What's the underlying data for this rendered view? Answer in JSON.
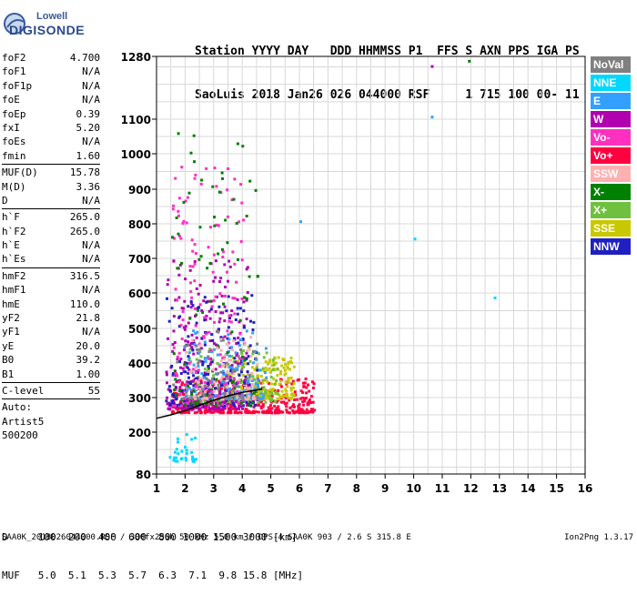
{
  "logo": {
    "line1": "Lowell",
    "line2": "DIGISONDE"
  },
  "header": {
    "line1": "Station YYYY DAY   DDD HHMMSS P1  FFS S AXN PPS IGA PS",
    "line2": "SaoLuis 2018 Jan26 026 044000 RSF     1 715 100 00- 11"
  },
  "params": {
    "group1": [
      {
        "name": "foF2",
        "value": "4.700"
      },
      {
        "name": "foF1",
        "value": "N/A"
      },
      {
        "name": "foF1p",
        "value": "N/A"
      },
      {
        "name": "foE",
        "value": "N/A"
      },
      {
        "name": "foEp",
        "value": "0.39"
      },
      {
        "name": "fxI",
        "value": "5.20"
      },
      {
        "name": "foEs",
        "value": "N/A"
      },
      {
        "name": "fmin",
        "value": "1.60"
      }
    ],
    "group2": [
      {
        "name": "MUF(D)",
        "value": "15.78"
      },
      {
        "name": "M(D)",
        "value": "3.36"
      },
      {
        "name": "D",
        "value": "N/A"
      }
    ],
    "group3": [
      {
        "name": "h`F",
        "value": "265.0"
      },
      {
        "name": "h`F2",
        "value": "265.0"
      },
      {
        "name": "h`E",
        "value": "N/A"
      },
      {
        "name": "h`Es",
        "value": "N/A"
      }
    ],
    "group4": [
      {
        "name": "hmF2",
        "value": "316.5"
      },
      {
        "name": "hmF1",
        "value": "N/A"
      },
      {
        "name": "hmE",
        "value": "110.0"
      },
      {
        "name": "yF2",
        "value": "21.8"
      },
      {
        "name": "yF1",
        "value": "N/A"
      },
      {
        "name": "yE",
        "value": "20.0"
      },
      {
        "name": "B0",
        "value": "39.2"
      },
      {
        "name": "B1",
        "value": "1.00"
      }
    ],
    "group5": [
      {
        "name": "C-level",
        "value": "55"
      }
    ],
    "auto_lines": [
      "Auto:",
      "Artist5",
      "500200"
    ]
  },
  "footer": {
    "row1": "D     100  200  400  600  800 1000 1500 3000 [km]",
    "row2": "MUF   5.0  5.1  5.3  5.7  6.3  7.1  9.8 15.8 [MHz]"
  },
  "bottom_line": "SAA0K_2018026044000.RSF / 300fx256h 50 kHz 5.0 km / DPS-4 SAA0K 903 / 2.6 S 315.8 E",
  "version": "Ion2Png 1.3.17",
  "chart_data": {
    "type": "scatter",
    "title": "",
    "xlabel": "",
    "ylabel": "",
    "xlim": [
      1,
      16
    ],
    "ylim": [
      80,
      1280
    ],
    "y_scale": "nonlinear (ionogram virtual height)",
    "x_ticks": [
      1,
      2,
      3,
      4,
      5,
      6,
      7,
      8,
      9,
      10,
      11,
      12,
      13,
      14,
      15,
      16
    ],
    "y_ticks": [
      80,
      200,
      300,
      400,
      500,
      600,
      700,
      800,
      900,
      1000,
      1100,
      1280
    ],
    "grid": true,
    "legend": {
      "placement": "right",
      "entries": [
        {
          "label": "NoVal",
          "color": "#808080"
        },
        {
          "label": "NNE",
          "color": "#00d8ff"
        },
        {
          "label": "E",
          "color": "#33a0ff"
        },
        {
          "label": "W",
          "color": "#b000b0"
        },
        {
          "label": "Vo-",
          "color": "#ff30c0"
        },
        {
          "label": "Vo+",
          "color": "#ff0040"
        },
        {
          "label": "SSW",
          "color": "#ffb0b0"
        },
        {
          "label": "X-",
          "color": "#008000"
        },
        {
          "label": "X+",
          "color": "#70c040"
        },
        {
          "label": "SSE",
          "color": "#c8c800"
        },
        {
          "label": "NNW",
          "color": "#2020c0"
        }
      ]
    },
    "profile_curve": {
      "color": "#000000",
      "points": [
        [
          1.0,
          240
        ],
        [
          1.5,
          250
        ],
        [
          2.0,
          262
        ],
        [
          2.5,
          278
        ],
        [
          3.0,
          292
        ],
        [
          3.5,
          305
        ],
        [
          4.0,
          315
        ],
        [
          4.5,
          322
        ],
        [
          4.7,
          325
        ]
      ]
    },
    "trace_clusters": [
      {
        "name": "trace-vo-plus",
        "color": "#ff0040",
        "x": [
          1.5,
          6.5
        ],
        "y": [
          260,
          360
        ],
        "density": 420
      },
      {
        "name": "trace-sse",
        "color": "#c8c800",
        "x": [
          3.5,
          5.8
        ],
        "y": [
          300,
          420
        ],
        "density": 220
      },
      {
        "name": "trace-x-plus",
        "color": "#70c040",
        "x": [
          2.0,
          5.2
        ],
        "y": [
          290,
          450
        ],
        "density": 160
      },
      {
        "name": "trace-w",
        "color": "#b000b0",
        "x": [
          1.3,
          4.2
        ],
        "y": [
          270,
          700
        ],
        "density": 260
      },
      {
        "name": "trace-nnw",
        "color": "#2020c0",
        "x": [
          1.3,
          4.5
        ],
        "y": [
          280,
          600
        ],
        "density": 200
      },
      {
        "name": "trace-e",
        "color": "#33a0ff",
        "x": [
          1.8,
          4.8
        ],
        "y": [
          300,
          500
        ],
        "density": 140
      },
      {
        "name": "trace-vo-minus",
        "color": "#ff30c0",
        "x": [
          1.5,
          4.0
        ],
        "y": [
          280,
          1000
        ],
        "density": 160
      },
      {
        "name": "trace-x-minus",
        "color": "#008000",
        "x": [
          1.5,
          4.5
        ],
        "y": [
          280,
          1100
        ],
        "density": 90
      },
      {
        "name": "trace-ssw",
        "color": "#ffb0b0",
        "x": [
          2.0,
          4.5
        ],
        "y": [
          300,
          480
        ],
        "density": 80
      },
      {
        "name": "trace-nne",
        "color": "#00d8ff",
        "x": [
          1.4,
          2.4
        ],
        "y": [
          120,
          200
        ],
        "density": 30
      },
      {
        "name": "trace-noval",
        "color": "#808080",
        "x": [
          1.5,
          4.5
        ],
        "y": [
          300,
          500
        ],
        "density": 60
      }
    ],
    "isolated_points": [
      {
        "x": 10.0,
        "y": 760,
        "color": "#00d8ff"
      },
      {
        "x": 10.6,
        "y": 1110,
        "color": "#33a0ff"
      },
      {
        "x": 10.6,
        "y": 1255,
        "color": "#b000b0"
      },
      {
        "x": 11.9,
        "y": 1270,
        "color": "#008000"
      },
      {
        "x": 12.8,
        "y": 590,
        "color": "#00d8ff"
      },
      {
        "x": 6.0,
        "y": 810,
        "color": "#33a0ff"
      }
    ]
  }
}
